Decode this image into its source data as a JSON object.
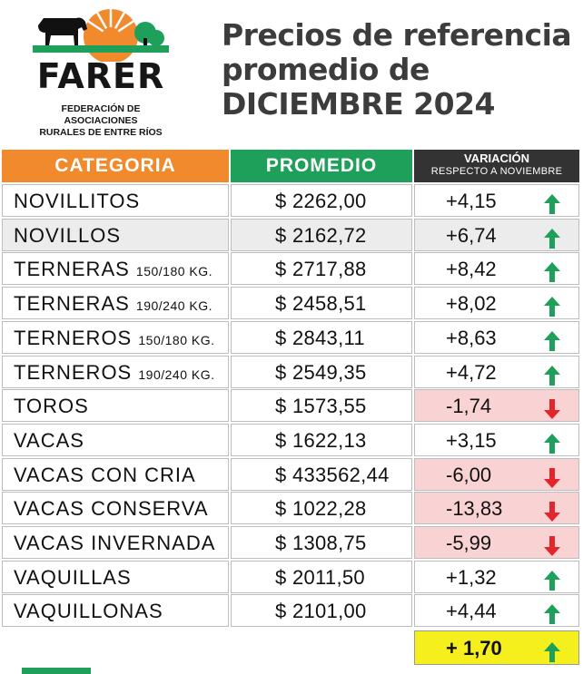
{
  "logo": {
    "name": "FARER",
    "subtitle_line1": "FEDERACIÓN DE ASOCIACIONES",
    "subtitle_line2": "RURALES DE ENTRE RÍOS"
  },
  "title": {
    "line1": "Precios de referencia",
    "line2": "promedio de",
    "line3": "DICIEMBRE 2024"
  },
  "headers": {
    "category": "CATEGORIA",
    "average": "PROMEDIO",
    "variation": "VARIACIÓN",
    "variation_sub": "RESPECTO A NOVIEMBRE"
  },
  "colors": {
    "category_header": "#f08a2c",
    "average_header": "#1fa05a",
    "variation_header": "#333333",
    "negative_bg": "#f9d3d3",
    "up_arrow": "#1fa05a",
    "down_arrow": "#e3262b",
    "total_bg": "#f6ef1e"
  },
  "rows": [
    {
      "name": "NOVILLITOS",
      "suffix": "",
      "price": "$ 2262,00",
      "variation": "+4,15",
      "trend": "up"
    },
    {
      "name": "NOVILLOS",
      "suffix": "",
      "price": "$ 2162,72",
      "variation": "+6,74",
      "trend": "up"
    },
    {
      "name": "TERNERAS",
      "suffix": "150/180 KG.",
      "price": "$ 2717,88",
      "variation": "+8,42",
      "trend": "up"
    },
    {
      "name": "TERNERAS",
      "suffix": "190/240 KG.",
      "price": "$ 2458,51",
      "variation": "+8,02",
      "trend": "up"
    },
    {
      "name": "TERNEROS",
      "suffix": "150/180 KG.",
      "price": "$ 2843,11",
      "variation": "+8,63",
      "trend": "up"
    },
    {
      "name": "TERNEROS",
      "suffix": "190/240 KG.",
      "price": "$ 2549,35",
      "variation": "+4,72",
      "trend": "up"
    },
    {
      "name": "TOROS",
      "suffix": "",
      "price": "$ 1573,55",
      "variation": "-1,74",
      "trend": "down"
    },
    {
      "name": "VACAS",
      "suffix": "",
      "price": "$ 1622,13",
      "variation": "+3,15",
      "trend": "up"
    },
    {
      "name": "VACAS CON CRIA",
      "suffix": "",
      "price": "$ 433562,44",
      "variation": "-6,00",
      "trend": "down"
    },
    {
      "name": "VACAS CONSERVA",
      "suffix": "",
      "price": "$ 1022,28",
      "variation": "-13,83",
      "trend": "down"
    },
    {
      "name": "VACAS INVERNADA",
      "suffix": "",
      "price": "$ 1308,75",
      "variation": "-5,99",
      "trend": "down"
    },
    {
      "name": "VAQUILLAS",
      "suffix": "",
      "price": "$ 2011,50",
      "variation": "+1,32",
      "trend": "up"
    },
    {
      "name": "VAQUILLONAS",
      "suffix": "",
      "price": "$ 2101,00",
      "variation": "+4,44",
      "trend": "up"
    }
  ],
  "total": {
    "value": "+ 1,70",
    "trend": "up"
  }
}
